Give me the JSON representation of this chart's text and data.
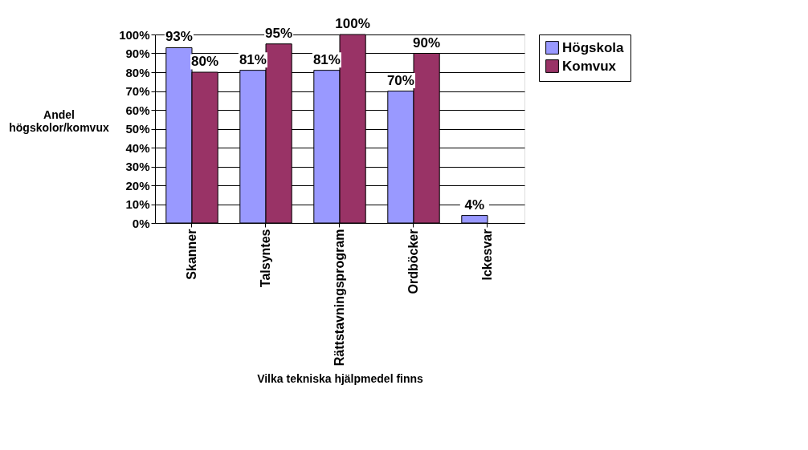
{
  "chart_data": {
    "type": "bar",
    "xlabel": "Vilka tekniska hjälpmedel finns",
    "ylabel": "Andel högskolor/komvux",
    "categories": [
      "Skanner",
      "Talsyntes",
      "Rättstavningsprogram",
      "Ordböcker",
      "Ickesvar"
    ],
    "series": [
      {
        "name": "Högskola",
        "color": "#9999ff",
        "values": [
          93,
          81,
          81,
          70,
          4
        ],
        "value_labels": [
          "93%",
          "81%",
          "81%",
          "70%",
          "4%"
        ]
      },
      {
        "name": "Komvux",
        "color": "#993366",
        "values": [
          80,
          95,
          100,
          90,
          null
        ],
        "value_labels": [
          "80%",
          "95%",
          "100%",
          "90%",
          null
        ]
      }
    ],
    "ylim": [
      0,
      100
    ],
    "yticks": [
      {
        "value": 0,
        "label": "0%"
      },
      {
        "value": 10,
        "label": "10%"
      },
      {
        "value": 20,
        "label": "20%"
      },
      {
        "value": 30,
        "label": "30%"
      },
      {
        "value": 40,
        "label": "40%"
      },
      {
        "value": 50,
        "label": "50%"
      },
      {
        "value": 60,
        "label": "60%"
      },
      {
        "value": 70,
        "label": "70%"
      },
      {
        "value": 80,
        "label": "80%"
      },
      {
        "value": 90,
        "label": "90%"
      },
      {
        "value": 100,
        "label": "100%"
      }
    ],
    "grid": "y",
    "legend": "right"
  }
}
